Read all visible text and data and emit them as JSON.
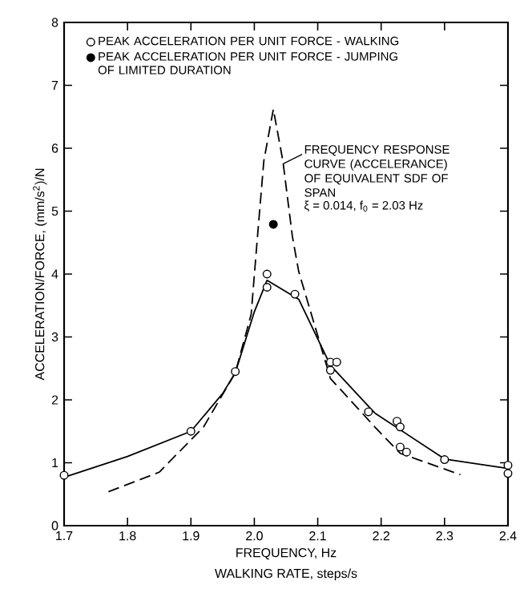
{
  "chart_data": {
    "type": "scatter",
    "xlabel": "FREQUENCY, Hz",
    "ylabel": "ACCELERATION/FORCE, (mm/s$^{2}$)/N",
    "xlim": [
      1.7,
      2.4
    ],
    "ylim": [
      0,
      8
    ],
    "xticks": [
      1.7,
      1.8,
      1.9,
      {
        "value": 2.0,
        "label": "2.0"
      },
      2.1,
      2.2,
      2.3,
      2.4
    ],
    "yticks": [
      0,
      1,
      2,
      3,
      4,
      5,
      6,
      7,
      8
    ],
    "legend": "top",
    "series": [
      {
        "type": "line",
        "color": "#000000",
        "line_style": "solid",
        "marker": "none",
        "x": [
          1.7,
          1.8,
          1.9,
          1.95,
          1.97,
          2.0,
          2.02,
          2.07,
          2.12,
          2.19,
          2.3,
          2.4
        ],
        "values": [
          0.77,
          1.1,
          1.5,
          2.1,
          2.43,
          3.4,
          3.9,
          3.6,
          2.55,
          1.79,
          1.06,
          0.91
        ]
      },
      {
        "type": "line",
        "color": "#000000",
        "line_style": "dashed",
        "marker": "none",
        "x": [
          1.77,
          1.85,
          1.92,
          1.97,
          1.995,
          2.005,
          2.015,
          2.03,
          2.045,
          2.06,
          2.07,
          2.09,
          2.12,
          2.19,
          2.23,
          2.325
        ],
        "values": [
          0.54,
          0.85,
          1.57,
          2.43,
          3.36,
          4.6,
          5.8,
          6.62,
          5.8,
          4.6,
          4.04,
          3.36,
          2.34,
          1.57,
          1.15,
          0.81
        ]
      },
      {
        "name": "PEAK ACCELERATION PER UNIT FORCE - WALKING",
        "color": "#ffffff",
        "marker": "circle",
        "x": [
          1.7,
          1.9,
          1.97,
          2.02,
          2.02,
          2.064,
          2.12,
          2.13,
          2.12,
          2.18,
          2.225,
          2.23,
          2.23,
          2.24,
          2.3,
          2.4,
          2.4
        ],
        "values": [
          0.8,
          1.5,
          2.45,
          4.0,
          3.79,
          3.68,
          2.6,
          2.6,
          2.47,
          1.81,
          1.66,
          1.57,
          1.25,
          1.17,
          1.05,
          0.96,
          0.83
        ]
      },
      {
        "name": "PEAK ACCELERATION PER UNIT FORCE - JUMPING OF LIMITED DURATION",
        "color": "#000000",
        "marker": "circle",
        "x": [
          2.03
        ],
        "values": [
          4.79
        ]
      }
    ],
    "annotations": [
      {
        "text": "FREQUENCY RESPONSE CURVE (ACCELERANCE) OF EQUIVALENT SDF OF SPAN",
        "x": 2.045,
        "y": 5.75
      },
      "ξ = 0.014, f$_{0}$ = 2.03 Hz",
      "WALKING RATE, steps/s"
    ]
  }
}
